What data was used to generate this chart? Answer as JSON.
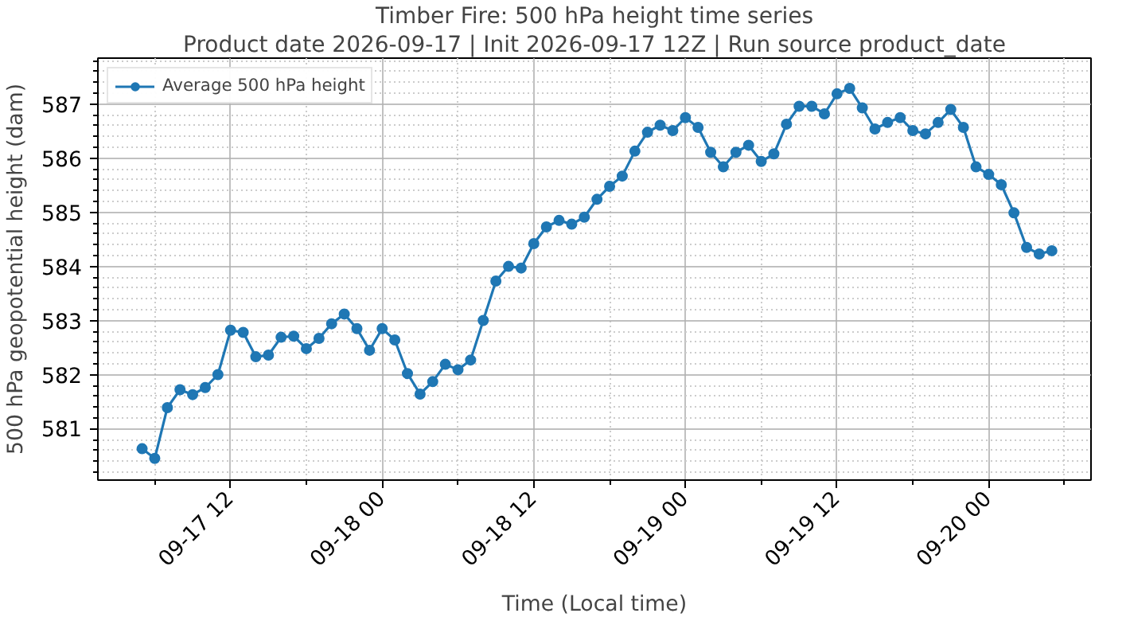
{
  "chart_data": {
    "type": "line",
    "title": "Timber Fire: 500 hPa height time series",
    "subtitle": "Product date 2026-09-17 | Init 2026-09-17 12Z | Run source product_date",
    "xlabel": "Time (Local time)",
    "ylabel": "500 hPa geopotential height (dam)",
    "x": [
      "2026-09-17T05:00",
      "2026-09-17T06:00",
      "2026-09-17T07:00",
      "2026-09-17T08:00",
      "2026-09-17T09:00",
      "2026-09-17T10:00",
      "2026-09-17T11:00",
      "2026-09-17T12:00",
      "2026-09-17T13:00",
      "2026-09-17T14:00",
      "2026-09-17T15:00",
      "2026-09-17T16:00",
      "2026-09-17T17:00",
      "2026-09-17T18:00",
      "2026-09-17T19:00",
      "2026-09-17T20:00",
      "2026-09-17T21:00",
      "2026-09-17T22:00",
      "2026-09-17T23:00",
      "2026-09-18T00:00",
      "2026-09-18T01:00",
      "2026-09-18T02:00",
      "2026-09-18T03:00",
      "2026-09-18T04:00",
      "2026-09-18T05:00",
      "2026-09-18T06:00",
      "2026-09-18T07:00",
      "2026-09-18T08:00",
      "2026-09-18T09:00",
      "2026-09-18T10:00",
      "2026-09-18T11:00",
      "2026-09-18T12:00",
      "2026-09-18T13:00",
      "2026-09-18T14:00",
      "2026-09-18T15:00",
      "2026-09-18T16:00",
      "2026-09-18T17:00",
      "2026-09-18T18:00",
      "2026-09-18T19:00",
      "2026-09-18T20:00",
      "2026-09-18T21:00",
      "2026-09-18T22:00",
      "2026-09-18T23:00",
      "2026-09-19T00:00",
      "2026-09-19T01:00",
      "2026-09-19T02:00",
      "2026-09-19T03:00",
      "2026-09-19T04:00",
      "2026-09-19T05:00",
      "2026-09-19T06:00",
      "2026-09-19T07:00",
      "2026-09-19T08:00",
      "2026-09-19T09:00",
      "2026-09-19T10:00",
      "2026-09-19T11:00",
      "2026-09-19T12:00",
      "2026-09-19T13:00",
      "2026-09-19T14:00",
      "2026-09-19T15:00",
      "2026-09-19T16:00",
      "2026-09-19T17:00",
      "2026-09-19T18:00",
      "2026-09-19T19:00",
      "2026-09-19T20:00",
      "2026-09-19T21:00",
      "2026-09-19T22:00",
      "2026-09-19T23:00",
      "2026-09-20T00:00",
      "2026-09-20T01:00",
      "2026-09-20T02:00",
      "2026-09-20T03:00",
      "2026-09-20T04:00",
      "2026-09-20T05:00"
    ],
    "series": [
      {
        "name": "Average 500 hPa height",
        "color": "#1f77b4",
        "values": [
          580.63,
          580.45,
          581.39,
          581.72,
          581.63,
          581.76,
          582.0,
          582.82,
          582.78,
          582.33,
          582.36,
          582.69,
          582.71,
          582.48,
          582.67,
          582.94,
          583.12,
          582.85,
          582.45,
          582.85,
          582.64,
          582.02,
          581.64,
          581.87,
          582.19,
          582.09,
          582.27,
          583.0,
          583.73,
          584.0,
          583.97,
          584.42,
          584.73,
          584.85,
          584.78,
          584.91,
          585.24,
          585.48,
          585.67,
          586.13,
          586.48,
          586.61,
          586.51,
          586.75,
          586.57,
          586.11,
          585.84,
          586.11,
          586.24,
          585.94,
          586.08,
          586.63,
          586.96,
          586.96,
          586.82,
          587.19,
          587.29,
          586.93,
          586.54,
          586.66,
          586.75,
          586.51,
          586.45,
          586.66,
          586.9,
          586.57,
          585.84,
          585.7,
          585.51,
          584.99,
          584.35,
          584.23,
          584.29
        ]
      }
    ],
    "xlim": [
      "2026-09-17T01:30",
      "2026-09-20T08:06"
    ],
    "xticks": [
      {
        "value": "2026-09-17T06:00",
        "label": null
      },
      {
        "value": "2026-09-17T12:00",
        "label": "09-17 12"
      },
      {
        "value": "2026-09-17T18:00",
        "label": null
      },
      {
        "value": "2026-09-18T00:00",
        "label": "09-18 00"
      },
      {
        "value": "2026-09-18T06:00",
        "label": null
      },
      {
        "value": "2026-09-18T12:00",
        "label": "09-18 12"
      },
      {
        "value": "2026-09-18T18:00",
        "label": null
      },
      {
        "value": "2026-09-19T00:00",
        "label": "09-19 00"
      },
      {
        "value": "2026-09-19T06:00",
        "label": null
      },
      {
        "value": "2026-09-19T12:00",
        "label": "09-19 12"
      },
      {
        "value": "2026-09-19T18:00",
        "label": null
      },
      {
        "value": "2026-09-20T00:00",
        "label": "09-20 00"
      },
      {
        "value": "2026-09-20T06:00",
        "label": null
      }
    ],
    "ylim": [
      580.05,
      587.85
    ],
    "yticks": [
      {
        "value": 580.2,
        "label": null
      },
      {
        "value": 580.4,
        "label": null
      },
      {
        "value": 580.6,
        "label": null
      },
      {
        "value": 580.8,
        "label": null
      },
      581,
      {
        "value": 581.2,
        "label": null
      },
      {
        "value": 581.4,
        "label": null
      },
      {
        "value": 581.6,
        "label": null
      },
      {
        "value": 581.8,
        "label": null
      },
      582,
      {
        "value": 582.2,
        "label": null
      },
      {
        "value": 582.4,
        "label": null
      },
      {
        "value": 582.6,
        "label": null
      },
      {
        "value": 582.8,
        "label": null
      },
      583,
      {
        "value": 583.2,
        "label": null
      },
      {
        "value": 583.4,
        "label": null
      },
      {
        "value": 583.6,
        "label": null
      },
      {
        "value": 583.8,
        "label": null
      },
      584,
      {
        "value": 584.2,
        "label": null
      },
      {
        "value": 584.4,
        "label": null
      },
      {
        "value": 584.6,
        "label": null
      },
      {
        "value": 584.8,
        "label": null
      },
      585,
      {
        "value": 585.2,
        "label": null
      },
      {
        "value": 585.4,
        "label": null
      },
      {
        "value": 585.6,
        "label": null
      },
      {
        "value": 585.8,
        "label": null
      },
      586,
      {
        "value": 586.2,
        "label": null
      },
      {
        "value": 586.4,
        "label": null
      },
      {
        "value": 586.6,
        "label": null
      },
      {
        "value": 586.8,
        "label": null
      },
      587,
      {
        "value": 587.2,
        "label": null
      },
      {
        "value": 587.4,
        "label": null
      },
      {
        "value": 587.6,
        "label": null
      },
      {
        "value": 587.8,
        "label": null
      }
    ],
    "grid": true,
    "legend": "top left",
    "marker": "circle",
    "line_style": "solid"
  }
}
